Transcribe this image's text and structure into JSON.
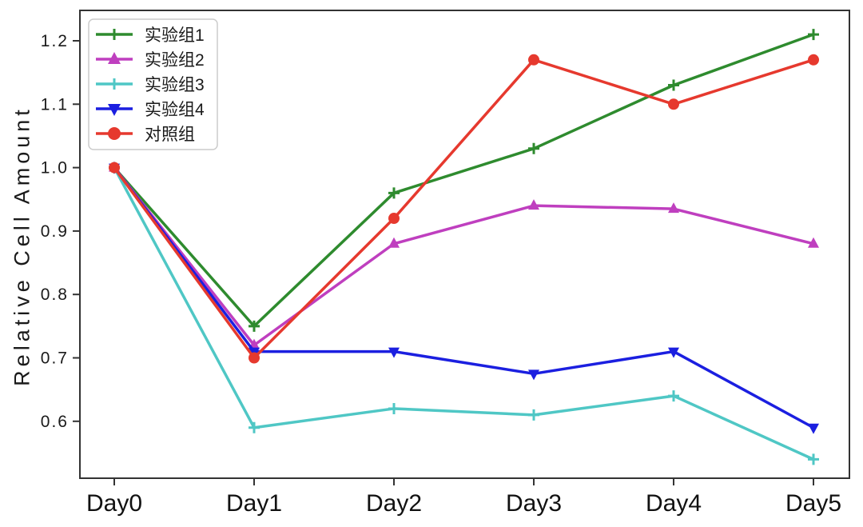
{
  "chart_data": {
    "type": "line",
    "title": "",
    "xlabel": "",
    "ylabel": "Relative Cell Amount",
    "categories": [
      "Day0",
      "Day1",
      "Day2",
      "Day3",
      "Day4",
      "Day5"
    ],
    "y_ticks": [
      0.6,
      0.7,
      0.8,
      0.9,
      1.0,
      1.1,
      1.2
    ],
    "ylim": [
      0.508,
      1.248
    ],
    "grid": false,
    "legend_position": "upper-left",
    "axis_color": "#333333",
    "tick_label_color": "#1a1a1a",
    "series": [
      {
        "name": "实验组1",
        "color": "#2e8b2e",
        "marker": "plus",
        "values": [
          1.0,
          0.75,
          0.96,
          1.03,
          1.13,
          1.21
        ]
      },
      {
        "name": "实验组2",
        "color": "#bf3fbf",
        "marker": "triangle-up",
        "values": [
          1.0,
          0.72,
          0.88,
          0.94,
          0.935,
          0.88
        ]
      },
      {
        "name": "实验组3",
        "color": "#4fc7c5",
        "marker": "plus",
        "values": [
          1.0,
          0.59,
          0.62,
          0.61,
          0.64,
          0.54
        ]
      },
      {
        "name": "实验组4",
        "color": "#1b1fe0",
        "marker": "triangle-down",
        "values": [
          1.0,
          0.71,
          0.71,
          0.675,
          0.71,
          0.59
        ]
      },
      {
        "name": "对照组",
        "color": "#e6392e",
        "marker": "circle",
        "values": [
          1.0,
          0.7,
          0.92,
          1.17,
          1.1,
          1.17
        ]
      }
    ]
  }
}
